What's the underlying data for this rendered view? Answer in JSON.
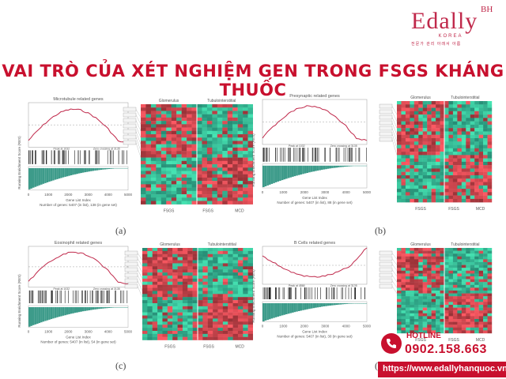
{
  "brand": {
    "name": "Edally",
    "superscript": "BH",
    "subtitle": "KOREA",
    "slogan": "전문가 관리 아래서 아름",
    "accent_color": "#c0294b"
  },
  "title": "VAI TRÒ CỦA XÉT NGHIỆM GEN TRONG FSGS KHÁNG THUỐC",
  "panels": [
    {
      "label": "(a)",
      "gsea_title": "Microtubule related genes",
      "ylabel": "Running Enrichment Score (RES)",
      "xlabel": "Gene List Index",
      "genes_note": "Number of genes: 5407 (in list), 138 (in gene set)",
      "xticks": [
        "0",
        "1000",
        "2000",
        "3000",
        "4000",
        "5000"
      ],
      "peak_text": "Peak at 1032",
      "zero_text": "Zero crossing at 3135",
      "heatmap_headers": [
        "Glomerulus",
        "Tubulointerstitial"
      ],
      "heatmap_groups": [
        "FSGS",
        "FSGS",
        "MCD"
      ]
    },
    {
      "label": "(b)",
      "gsea_title": "Presynaptic related genes",
      "ylabel": "Running Enrichment Score (RES)",
      "xlabel": "Gene List Index",
      "genes_note": "Number of genes: 5407 (in list), 88 (in gene set)",
      "xticks": [
        "0",
        "1000",
        "2000",
        "3000",
        "4000",
        "5000"
      ],
      "peak_text": "Peak at 1032",
      "zero_text": "Zero crossing at 3135",
      "heatmap_headers": [
        "Glomerulus",
        "Tubulointerstitial"
      ],
      "heatmap_groups": [
        "FSGS",
        "FSGS",
        "MCD"
      ]
    },
    {
      "label": "(c)",
      "gsea_title": "Eosinophil related genes",
      "ylabel": "Running Enrichment Score (RES)",
      "xlabel": "Gene List Index",
      "genes_note": "Number of genes: 5407 (in list), 54 (in gene set)",
      "xticks": [
        "0",
        "1000",
        "2000",
        "3000",
        "4000",
        "5000"
      ],
      "peak_text": "Peak at 1032",
      "zero_text": "Zero crossing at 3135",
      "heatmap_headers": [
        "Glomerulus",
        "Tubulointerstitial"
      ],
      "heatmap_groups": [
        "FSGS",
        "FSGS",
        "MCD"
      ]
    },
    {
      "label": "(d)",
      "gsea_title": "B Cells related genes",
      "ylabel": "Running Enrichment Score (RES)",
      "xlabel": "Gene List Index",
      "genes_note": "Number of genes: 5407 (in list), 30 (in gene set)",
      "xticks": [
        "0",
        "1000",
        "2000",
        "3000",
        "4000",
        "5000"
      ],
      "peak_text": "Peak at 4866",
      "zero_text": "Zero crossing at 3135",
      "heatmap_headers": [
        "Glomerulus",
        "Tubulointerstitial"
      ],
      "heatmap_groups": [
        "FSGS",
        "FSGS",
        "MCD"
      ]
    }
  ],
  "contact": {
    "hotline_label": "HOTLINE",
    "phone": "0902.158.663",
    "website": "https://www.edallyhanquoc.vn",
    "color": "#c8102e"
  }
}
